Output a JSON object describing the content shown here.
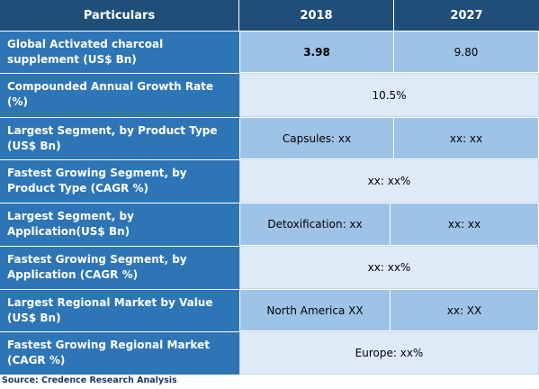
{
  "header": {
    "particulars": "Particulars",
    "col1": "2018",
    "col2": "2027"
  },
  "rows": [
    {
      "label": "Global Activated charcoal supplement (US$ Bn)",
      "v1": "3.98",
      "v2": "9.80"
    },
    {
      "label": "Compounded Annual Growth Rate (%)",
      "merged": "10.5%"
    },
    {
      "label": "Largest Segment, by Product Type (US$ Bn)",
      "v1": "Capsules: xx",
      "v2": "xx: xx"
    },
    {
      "label": "Fastest Growing Segment, by Product Type (CAGR %)",
      "merged": "xx:  xx%"
    },
    {
      "label": "Largest Segment, by Application(US$ Bn)",
      "v1": "Detoxification: xx",
      "v2": "xx: xx"
    },
    {
      "label": "Fastest Growing Segment, by Application (CAGR %)",
      "merged": "xx:  xx%"
    },
    {
      "label": "Largest Regional Market by Value (US$ Bn)",
      "v1": "North America XX",
      "v2": "xx: XX"
    },
    {
      "label": "Fastest Growing Regional Market (CAGR %)",
      "merged": "Europe: xx%"
    }
  ],
  "source": "Source: Credence Research Analysis",
  "colors": {
    "header": "#1f4e79",
    "label": "#2e75b6",
    "dark_cell": "#9dc3e6",
    "light_cell": "#deebf7"
  }
}
